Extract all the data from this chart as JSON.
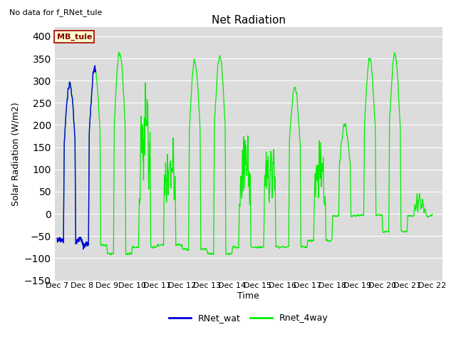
{
  "title": "Net Radiation",
  "no_data_text": "No data for f_RNet_tule",
  "ylabel": "Solar Radiation (W/m2)",
  "xlabel": "Time",
  "ylim": [
    -150,
    420
  ],
  "yticks": [
    -150,
    -100,
    -50,
    0,
    50,
    100,
    150,
    200,
    250,
    300,
    350,
    400
  ],
  "bg_color": "#dcdcdc",
  "fig_color": "#ffffff",
  "legend_labels": [
    "RNet_wat",
    "Rnet_4way"
  ],
  "legend_colors": [
    "#0000dd",
    "#00ee00"
  ],
  "station_box_text": "MB_tule",
  "station_box_facecolor": "#ffffcc",
  "station_box_edgecolor": "#aa0000",
  "station_text_color": "#880000",
  "title_fontsize": 11,
  "axis_fontsize": 9,
  "tick_fontsize": 8
}
